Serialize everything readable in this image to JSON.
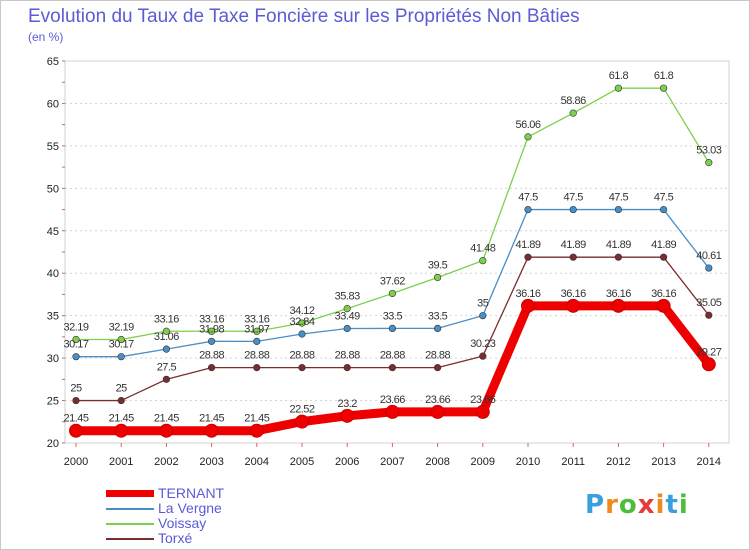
{
  "title": "Evolution du Taux de Taxe Foncière sur les Propriétés Non Bâties",
  "subtitle": "(en %)",
  "logo": "Proxiti",
  "chart_data": {
    "type": "line",
    "title": "Evolution du Taux de Taxe Foncière sur les Propriétés Non Bâties",
    "ylabel": "(en %)",
    "xlabel": "",
    "ylim": [
      20,
      65
    ],
    "yticks": [
      20,
      25,
      30,
      35,
      40,
      45,
      50,
      55,
      60,
      65
    ],
    "categories": [
      "2000",
      "2001",
      "2002",
      "2003",
      "2004",
      "2005",
      "2006",
      "2007",
      "2008",
      "2009",
      "2010",
      "2011",
      "2012",
      "2013",
      "2014"
    ],
    "legend_position": "bottom-left",
    "series": [
      {
        "name": "TERNANT",
        "color": "#ee0000",
        "values": [
          21.45,
          21.45,
          21.45,
          21.45,
          21.45,
          22.52,
          23.2,
          23.66,
          23.66,
          23.66,
          36.16,
          36.16,
          36.16,
          36.16,
          29.27
        ],
        "labels": [
          "21.45",
          "21.45",
          "21.45",
          "21.45",
          "21.45",
          "22.52",
          "23.2",
          "23.66",
          "23.66",
          "23.66",
          "36.16",
          "36.16",
          "36.16",
          "36.16",
          "29.27"
        ]
      },
      {
        "name": "La Vergne",
        "color": "#4a8ec6",
        "values": [
          30.17,
          30.17,
          31.06,
          31.98,
          31.97,
          32.84,
          33.49,
          33.5,
          33.5,
          35,
          47.5,
          47.5,
          47.5,
          47.5,
          40.61
        ],
        "labels": [
          "30.17",
          "30.17",
          "31.06",
          "31.98",
          "31.97",
          "32.84",
          "33.49",
          "33.5",
          "33.5",
          "35",
          "47.5",
          "47.5",
          "47.5",
          "47.5",
          "40.61"
        ]
      },
      {
        "name": "Voissay",
        "color": "#7ed04a",
        "values": [
          32.19,
          32.19,
          33.16,
          33.16,
          33.16,
          34.12,
          35.83,
          37.62,
          39.5,
          41.48,
          56.06,
          58.86,
          61.8,
          61.8,
          53.03
        ],
        "labels": [
          "32.19",
          "32.19",
          "33.16",
          "33.16",
          "33.16",
          "34.12",
          "35.83",
          "37.62",
          "39.5",
          "41.48",
          "56.06",
          "58.86",
          "61.8",
          "61.8",
          "53.03"
        ]
      },
      {
        "name": "Torxé",
        "color": "#7a2d2d",
        "values": [
          25,
          25,
          27.5,
          28.88,
          28.88,
          28.88,
          28.88,
          28.88,
          28.88,
          30.23,
          41.89,
          41.89,
          41.89,
          41.89,
          35.05
        ],
        "labels": [
          "25",
          "25",
          "27.5",
          "28.88",
          "28.88",
          "28.88",
          "28.88",
          "28.88",
          "28.88",
          "30.23",
          "41.89",
          "41.89",
          "41.89",
          "41.89",
          "35.05"
        ]
      }
    ]
  }
}
